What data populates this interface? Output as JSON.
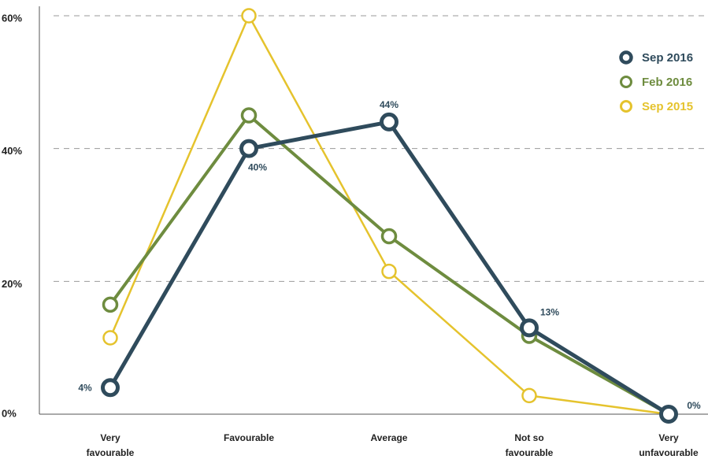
{
  "chart_data": {
    "type": "line",
    "title": "",
    "xlabel": "",
    "ylabel": "",
    "categories": [
      [
        "Very",
        "favourable"
      ],
      [
        "Favourable"
      ],
      [
        "Average"
      ],
      [
        "Not so",
        "favourable"
      ],
      [
        "Very",
        "unfavourable"
      ]
    ],
    "y_ticks": [
      "0%",
      "20%",
      "40%",
      "60%"
    ],
    "ylim": [
      0,
      60
    ],
    "grid": "horizontal dashed",
    "legend_position": "top-right",
    "series": [
      {
        "name": "Sep 2015",
        "color": "#e5c32d",
        "values": [
          11.5,
          60,
          21.5,
          2.8,
          0
        ],
        "labels": []
      },
      {
        "name": "Feb 2016",
        "color": "#6e8c3f",
        "values": [
          16.5,
          45,
          26.8,
          11.8,
          0
        ],
        "labels": []
      },
      {
        "name": "Sep 2016",
        "color": "#2f4b5c",
        "values": [
          4,
          40,
          44,
          13,
          0
        ],
        "labels": [
          "4%",
          "40%",
          "44%",
          "13%",
          "0%"
        ]
      }
    ],
    "legend_order": [
      "Sep 2016",
      "Feb 2016",
      "Sep 2015"
    ]
  }
}
